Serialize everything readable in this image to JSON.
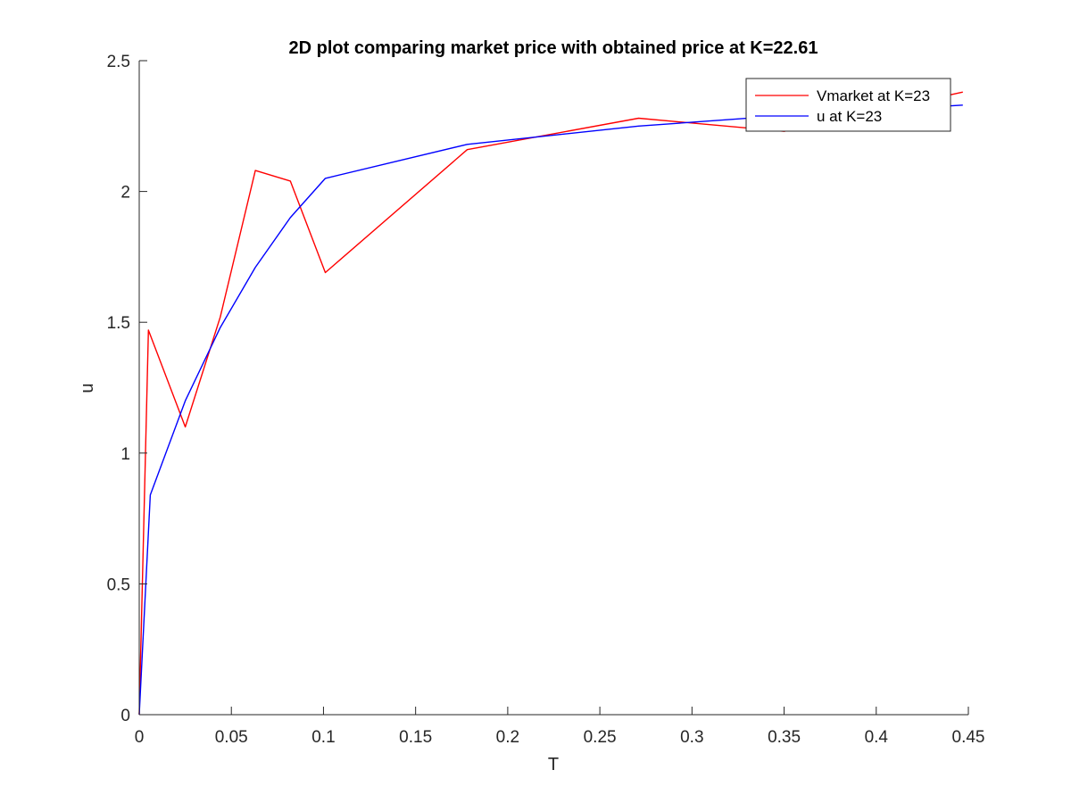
{
  "chart_data": {
    "type": "line",
    "title": "2D plot comparing market price with obtained price at K=22.61",
    "xlabel": "T",
    "ylabel": "u",
    "xlim": [
      0,
      0.45
    ],
    "ylim": [
      0,
      2.5
    ],
    "xticks": [
      "0",
      "0.05",
      "0.1",
      "0.15",
      "0.2",
      "0.25",
      "0.3",
      "0.35",
      "0.4",
      "0.45"
    ],
    "yticks": [
      "0",
      "0.5",
      "1",
      "1.5",
      "2",
      "2.5"
    ],
    "grid": false,
    "legend_position": "top-right",
    "series": [
      {
        "name": "Vmarket at K=23",
        "color": "#ff0000",
        "x": [
          0,
          0.005,
          0.025,
          0.044,
          0.063,
          0.082,
          0.101,
          0.178,
          0.271,
          0.35,
          0.447
        ],
        "y": [
          0,
          1.47,
          1.1,
          1.52,
          2.08,
          2.04,
          1.69,
          2.16,
          2.28,
          2.23,
          2.38
        ]
      },
      {
        "name": "u at K=23",
        "color": "#0000ff",
        "x": [
          0,
          0.006,
          0.025,
          0.044,
          0.063,
          0.082,
          0.101,
          0.178,
          0.271,
          0.35,
          0.447
        ],
        "y": [
          0,
          0.84,
          1.2,
          1.48,
          1.71,
          1.9,
          2.05,
          2.18,
          2.25,
          2.29,
          2.33
        ]
      }
    ]
  }
}
